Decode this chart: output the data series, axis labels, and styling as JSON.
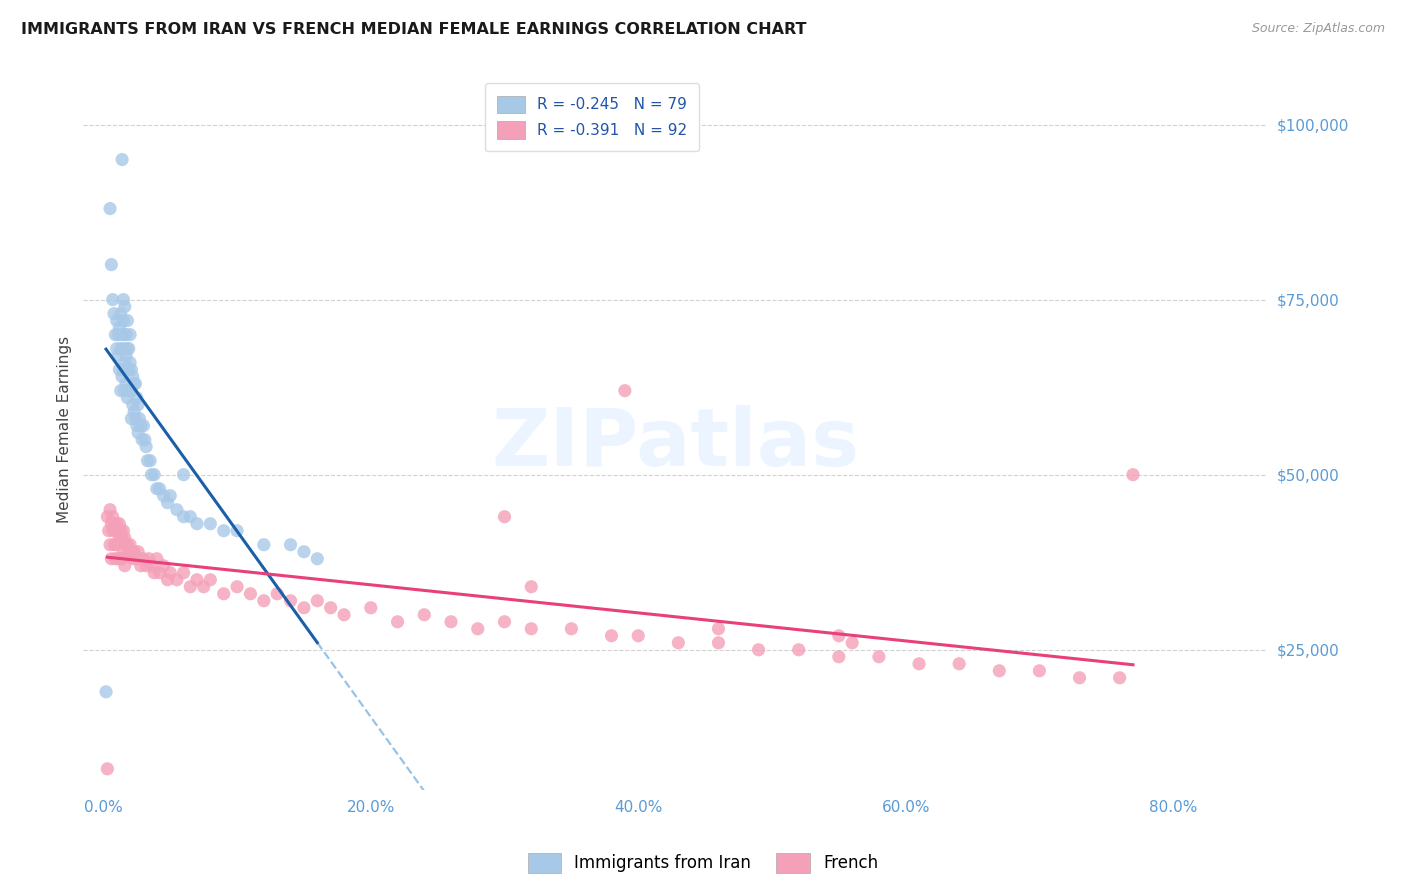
{
  "title": "IMMIGRANTS FROM IRAN VS FRENCH MEDIAN FEMALE EARNINGS CORRELATION CHART",
  "source": "Source: ZipAtlas.com",
  "ylabel": "Median Female Earnings",
  "ytick_labels": [
    "$25,000",
    "$50,000",
    "$75,000",
    "$100,000"
  ],
  "ytick_values": [
    25000,
    50000,
    75000,
    100000
  ],
  "xtick_labels": [
    "0.0%",
    "20.0%",
    "40.0%",
    "60.0%",
    "80.0%"
  ],
  "xtick_values": [
    0.0,
    0.2,
    0.4,
    0.6,
    0.8
  ],
  "xlim": [
    -0.015,
    0.87
  ],
  "ylim": [
    5000,
    108000
  ],
  "legend_r1": "R = -0.245   N = 79",
  "legend_r2": "R = -0.391   N = 92",
  "legend_label1": "Immigrants from Iran",
  "legend_label2": "French",
  "color_blue": "#a8c8e8",
  "color_pink": "#f4a0b8",
  "trendline_blue_color": "#1a5fa8",
  "trendline_pink_color": "#e8407a",
  "trendline_dashed_color": "#88b8e0",
  "axis_label_color": "#5b9bd5",
  "background_color": "#ffffff",
  "iran_x": [
    0.002,
    0.005,
    0.006,
    0.007,
    0.008,
    0.009,
    0.01,
    0.01,
    0.011,
    0.011,
    0.012,
    0.012,
    0.013,
    0.013,
    0.013,
    0.014,
    0.014,
    0.015,
    0.015,
    0.015,
    0.015,
    0.016,
    0.016,
    0.016,
    0.016,
    0.017,
    0.017,
    0.017,
    0.018,
    0.018,
    0.018,
    0.018,
    0.019,
    0.019,
    0.019,
    0.02,
    0.02,
    0.02,
    0.021,
    0.021,
    0.021,
    0.022,
    0.022,
    0.023,
    0.023,
    0.024,
    0.024,
    0.025,
    0.025,
    0.026,
    0.026,
    0.027,
    0.028,
    0.029,
    0.03,
    0.031,
    0.032,
    0.033,
    0.035,
    0.036,
    0.038,
    0.04,
    0.042,
    0.045,
    0.048,
    0.05,
    0.055,
    0.06,
    0.065,
    0.07,
    0.08,
    0.09,
    0.1,
    0.12,
    0.14,
    0.15,
    0.16,
    0.014,
    0.06
  ],
  "iran_y": [
    19000,
    88000,
    80000,
    75000,
    73000,
    70000,
    72000,
    68000,
    70000,
    67000,
    71000,
    65000,
    73000,
    68000,
    62000,
    70000,
    64000,
    75000,
    72000,
    68000,
    65000,
    74000,
    70000,
    66000,
    62000,
    70000,
    67000,
    63000,
    72000,
    68000,
    65000,
    61000,
    68000,
    65000,
    62000,
    70000,
    66000,
    62000,
    65000,
    62000,
    58000,
    64000,
    60000,
    63000,
    59000,
    63000,
    58000,
    61000,
    57000,
    60000,
    56000,
    58000,
    57000,
    55000,
    57000,
    55000,
    54000,
    52000,
    52000,
    50000,
    50000,
    48000,
    48000,
    47000,
    46000,
    47000,
    45000,
    44000,
    44000,
    43000,
    43000,
    42000,
    42000,
    40000,
    40000,
    39000,
    38000,
    95000,
    50000
  ],
  "french_x": [
    0.003,
    0.004,
    0.005,
    0.005,
    0.006,
    0.006,
    0.007,
    0.007,
    0.008,
    0.008,
    0.009,
    0.009,
    0.01,
    0.01,
    0.011,
    0.011,
    0.012,
    0.012,
    0.013,
    0.013,
    0.014,
    0.014,
    0.015,
    0.015,
    0.016,
    0.016,
    0.017,
    0.018,
    0.019,
    0.02,
    0.021,
    0.022,
    0.023,
    0.025,
    0.026,
    0.028,
    0.03,
    0.032,
    0.034,
    0.036,
    0.038,
    0.04,
    0.042,
    0.045,
    0.048,
    0.05,
    0.055,
    0.06,
    0.065,
    0.07,
    0.075,
    0.08,
    0.09,
    0.1,
    0.11,
    0.12,
    0.13,
    0.14,
    0.15,
    0.16,
    0.17,
    0.18,
    0.2,
    0.22,
    0.24,
    0.26,
    0.28,
    0.3,
    0.32,
    0.35,
    0.38,
    0.4,
    0.43,
    0.46,
    0.49,
    0.52,
    0.55,
    0.58,
    0.61,
    0.64,
    0.67,
    0.7,
    0.73,
    0.76,
    0.003,
    0.32,
    0.46,
    0.55,
    0.39,
    0.56,
    0.77,
    0.3
  ],
  "french_y": [
    44000,
    42000,
    45000,
    40000,
    43000,
    38000,
    44000,
    42000,
    43000,
    40000,
    42000,
    38000,
    43000,
    40000,
    42000,
    38000,
    43000,
    41000,
    42000,
    38000,
    41000,
    38000,
    42000,
    39000,
    41000,
    37000,
    40000,
    40000,
    39000,
    40000,
    39000,
    38000,
    39000,
    38000,
    39000,
    37000,
    38000,
    37000,
    38000,
    37000,
    36000,
    38000,
    36000,
    37000,
    35000,
    36000,
    35000,
    36000,
    34000,
    35000,
    34000,
    35000,
    33000,
    34000,
    33000,
    32000,
    33000,
    32000,
    31000,
    32000,
    31000,
    30000,
    31000,
    29000,
    30000,
    29000,
    28000,
    29000,
    28000,
    28000,
    27000,
    27000,
    26000,
    26000,
    25000,
    25000,
    24000,
    24000,
    23000,
    23000,
    22000,
    22000,
    21000,
    21000,
    8000,
    34000,
    28000,
    27000,
    62000,
    26000,
    50000,
    44000
  ]
}
